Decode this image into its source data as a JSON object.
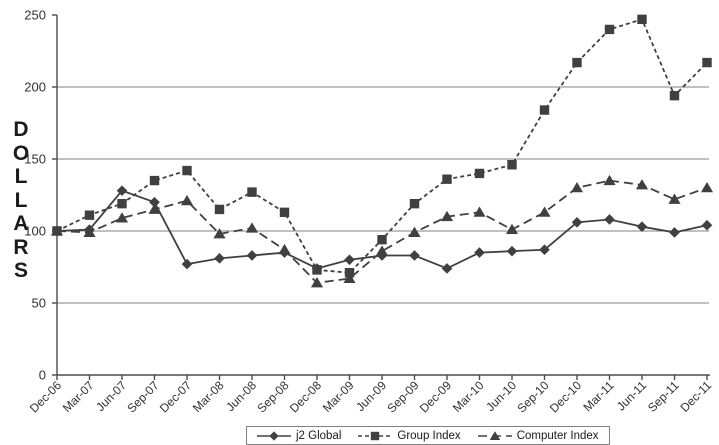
{
  "chart_data": {
    "type": "line",
    "title": "",
    "xlabel": "",
    "ylabel": "DOLLARS",
    "ylim": [
      0,
      250
    ],
    "y_ticks": [
      0,
      50,
      100,
      150,
      200,
      250
    ],
    "gridlines_at": [
      50,
      100,
      150,
      200
    ],
    "grid": true,
    "legend_position": "bottom-center",
    "categories": [
      "Dec-06",
      "Mar-07",
      "Jun-07",
      "Sep-07",
      "Dec-07",
      "Mar-08",
      "Jun-08",
      "Sep-08",
      "Dec-08",
      "Mar-09",
      "Jun-09",
      "Sep-09",
      "Dec-09",
      "Mar-10",
      "Jun-10",
      "Sep-10",
      "Dec-10",
      "Mar-11",
      "Jun-11",
      "Sep-11",
      "Dec-11"
    ],
    "series": [
      {
        "name": "j2 Global",
        "marker": "diamond",
        "line_style": "solid",
        "values": [
          100,
          101,
          128,
          120,
          77,
          81,
          83,
          85,
          74,
          80,
          83,
          83,
          74,
          85,
          86,
          87,
          106,
          108,
          103,
          99,
          104
        ]
      },
      {
        "name": "Group Index",
        "marker": "square",
        "line_style": "dash",
        "values": [
          100,
          111,
          119,
          135,
          142,
          115,
          127,
          113,
          73,
          71,
          94,
          119,
          136,
          140,
          146,
          184,
          217,
          240,
          247,
          194,
          217
        ]
      },
      {
        "name": "Computer Index",
        "marker": "triangle",
        "line_style": "longdash",
        "values": [
          100,
          99,
          109,
          115,
          121,
          98,
          102,
          87,
          64,
          67,
          86,
          99,
          110,
          113,
          101,
          113,
          130,
          135,
          132,
          122,
          130
        ]
      }
    ],
    "colors": {
      "series_line": "#404040",
      "marker_fill": "#404040",
      "gridline": "#808080",
      "axis": "#4d4d4d",
      "tick_text": "#333333",
      "background": "#ffffff"
    }
  }
}
